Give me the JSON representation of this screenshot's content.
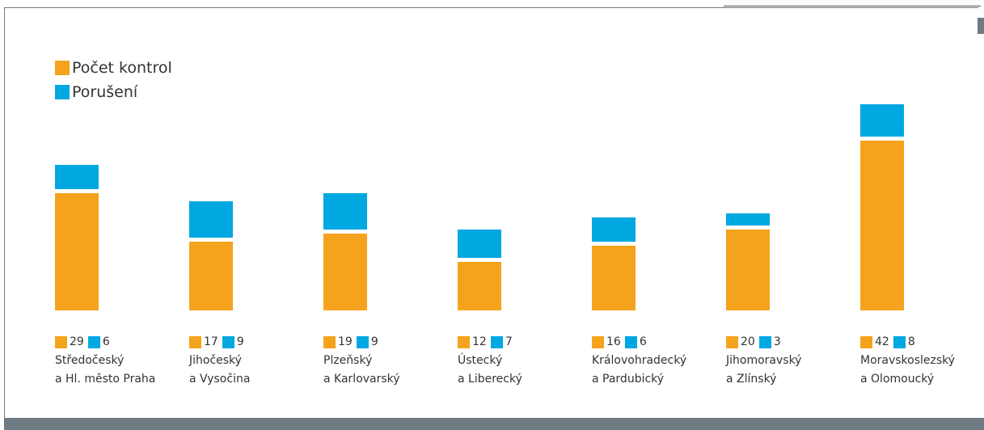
{
  "colors": {
    "controls": "#f5a31c",
    "violations": "#00a8e1",
    "frame": "#6e7b82"
  },
  "legend": {
    "controls": "Počet kontrol",
    "violations": "Porušení"
  },
  "chart_data": {
    "type": "bar",
    "stacked": true,
    "categories": [
      "Středočeský a Hl. město Praha",
      "Jihočeský a Vysočina",
      "Plzeňský a Karlovarský",
      "Ústecký a Liberecký",
      "Královohradecký a Pardubický",
      "Jihomoravský a Zlínský",
      "Moravskoslezský a Olomoucký"
    ],
    "category_lines": [
      [
        "Středočeský",
        "a Hl. město Praha"
      ],
      [
        "Jihočeský",
        "a Vysočina"
      ],
      [
        "Plzeňský",
        "a Karlovarský"
      ],
      [
        "Ústecký",
        "a Liberecký"
      ],
      [
        "Královohradecký",
        "a Pardubický"
      ],
      [
        "Jihomoravský",
        "a Zlínský"
      ],
      [
        "Moravskoslezský",
        "a Olomoucký"
      ]
    ],
    "series": [
      {
        "name": "Počet kontrol",
        "values": [
          29,
          17,
          19,
          12,
          16,
          20,
          42
        ]
      },
      {
        "name": "Porušení",
        "values": [
          6,
          9,
          9,
          7,
          6,
          3,
          8
        ]
      }
    ],
    "title": "",
    "xlabel": "",
    "ylabel": ""
  }
}
